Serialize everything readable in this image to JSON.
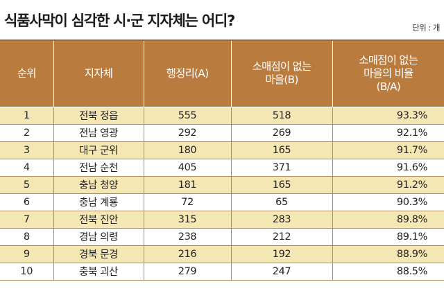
{
  "title": "식품사막이 심각한 시·군 지자체는 어디?",
  "unit": "단위 : 개",
  "columns": [
    [
      "순위"
    ],
    [
      "지자체"
    ],
    [
      "행정리(A)"
    ],
    [
      "소매점이 없는",
      "마을(B)"
    ],
    [
      "소매점이 없는",
      "마을의 비율",
      "(B/A)"
    ]
  ],
  "chart_data": {
    "type": "table",
    "title": "식품사막이 심각한 시·군 지자체는 어디?",
    "headers": [
      "순위",
      "지자체",
      "행정리(A)",
      "소매점이 없는 마을(B)",
      "소매점이 없는 마을의 비율 (B/A)"
    ],
    "rows": [
      [
        "1",
        "전북 정읍",
        "555",
        "518",
        "93.3%"
      ],
      [
        "2",
        "전남 영광",
        "292",
        "269",
        "92.1%"
      ],
      [
        "3",
        "대구 군위",
        "180",
        "165",
        "91.7%"
      ],
      [
        "4",
        "전남 순천",
        "405",
        "371",
        "91.6%"
      ],
      [
        "5",
        "충남 청양",
        "181",
        "165",
        "91.2%"
      ],
      [
        "6",
        "충남 계룡",
        "72",
        "65",
        "90.3%"
      ],
      [
        "7",
        "전북 진안",
        "315",
        "283",
        "89.8%"
      ],
      [
        "8",
        "경남 의령",
        "238",
        "212",
        "89.1%"
      ],
      [
        "9",
        "경북 문경",
        "216",
        "192",
        "88.9%"
      ],
      [
        "10",
        "충북 괴산",
        "279",
        "247",
        "88.5%"
      ]
    ]
  },
  "colors": {
    "header_bg": "#b97b3e",
    "stripe_bg": "#f4e7b4"
  }
}
